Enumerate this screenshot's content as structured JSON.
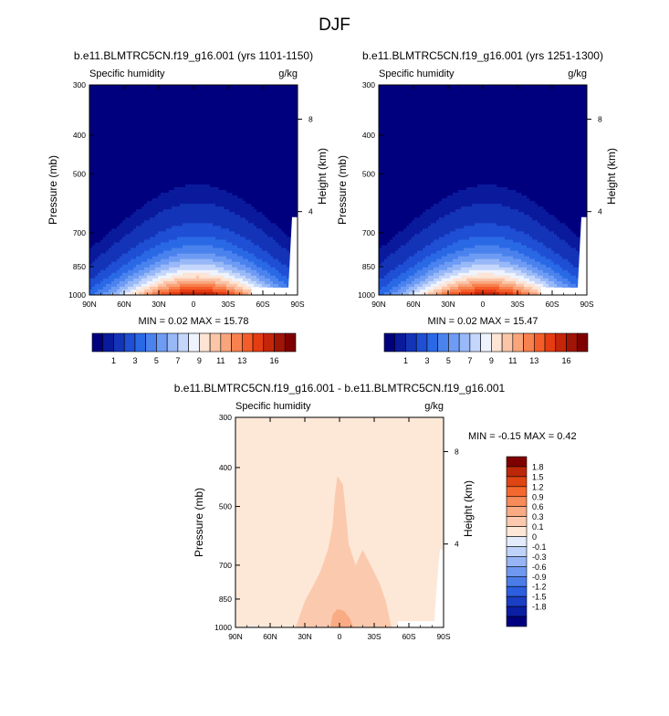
{
  "page": {
    "title": "DJF"
  },
  "palettes": {
    "absolute": [
      "#00007f",
      "#0a1a9c",
      "#1434b8",
      "#1e4fd4",
      "#2a69e6",
      "#4a82ee",
      "#6e9cf4",
      "#98b8f8",
      "#c4d6fb",
      "#eef3fd",
      "#fde4d4",
      "#fbc5a8",
      "#f9a57c",
      "#f7814f",
      "#f45d2a",
      "#e63c12",
      "#c5260a",
      "#a01505",
      "#7f0000"
    ],
    "difference": [
      "#00007f",
      "#0b1fa3",
      "#1a3ec4",
      "#2c5ee0",
      "#4a7de8",
      "#6f99f0",
      "#97b4f5",
      "#bfd2f9",
      "#e3ecfc",
      "#fde8d8",
      "#fbcaae",
      "#f9ab84",
      "#f78b59",
      "#f4682f",
      "#de4513",
      "#bd2709",
      "#7f0000"
    ]
  },
  "panels": [
    {
      "title": "b.e11.BLMTRC5CN.f19_g16.001 (yrs 1101-1150)",
      "left_label": "Specific humidity",
      "right_label": "g/kg",
      "y_label": "Pressure (mb)",
      "y2_label": "Height (km)",
      "x_ticks": [
        "90N",
        "60N",
        "30N",
        "0",
        "30S",
        "60S",
        "90S"
      ],
      "y_ticks": [
        "300",
        "400",
        "500",
        "700",
        "850",
        "1000"
      ],
      "h_ticks": [
        "8",
        "4"
      ],
      "stats": "MIN =   0.02   MAX =  15.78",
      "colorbar_labels": [
        "1",
        "3",
        "5",
        "7",
        "9",
        "11",
        "13",
        "16"
      ]
    },
    {
      "title": "b.e11.BLMTRC5CN.f19_g16.001 (yrs 1251-1300)",
      "left_label": "Specific humidity",
      "right_label": "g/kg",
      "y_label": "Pressure (mb)",
      "y2_label": "Height (km)",
      "x_ticks": [
        "90N",
        "60N",
        "30N",
        "0",
        "30S",
        "60S",
        "90S"
      ],
      "y_ticks": [
        "300",
        "400",
        "500",
        "700",
        "850",
        "1000"
      ],
      "h_ticks": [
        "8",
        "4"
      ],
      "stats": "MIN =   0.02   MAX =  15.47",
      "colorbar_labels": [
        "1",
        "3",
        "5",
        "7",
        "9",
        "11",
        "13",
        "16"
      ]
    },
    {
      "title": "b.e11.BLMTRC5CN.f19_g16.001 - b.e11.BLMTRC5CN.f19_g16.001",
      "left_label": "Specific humidity",
      "right_label": "g/kg",
      "y_label": "Pressure (mb)",
      "y2_label": "Height (km)",
      "x_ticks": [
        "90N",
        "60N",
        "30N",
        "0",
        "30S",
        "60S",
        "90S"
      ],
      "y_ticks": [
        "300",
        "400",
        "500",
        "700",
        "850",
        "1000"
      ],
      "h_ticks": [
        "8",
        "4"
      ],
      "stats": "MIN =  -0.15   MAX =   0.42",
      "colorbar_labels": [
        "1.8",
        "1.5",
        "1.2",
        "0.9",
        "0.6",
        "0.3",
        "0.1",
        "0",
        "-0.1",
        "-0.3",
        "-0.6",
        "-0.9",
        "-1.2",
        "-1.5",
        "-1.8"
      ]
    }
  ],
  "chart_data": [
    {
      "type": "heatmap",
      "title": "b.e11.BLMTRC5CN.f19_g16.001 (yrs 1101-1150)",
      "field": "Specific humidity",
      "units": "g/kg",
      "xlabel": "",
      "ylabel": "Pressure (mb)",
      "y2label": "Height (km)",
      "xlim": [
        90,
        -90
      ],
      "ylim": [
        1000,
        300
      ],
      "min": 0.02,
      "max": 15.78,
      "contour_levels": [
        0.5,
        1,
        2,
        3,
        4,
        5,
        6,
        7,
        8,
        9,
        10,
        11,
        12,
        13,
        14,
        15,
        16
      ],
      "peak_latitude": -3,
      "peak_pressure": 1000
    },
    {
      "type": "heatmap",
      "title": "b.e11.BLMTRC5CN.f19_g16.001 (yrs 1251-1300)",
      "field": "Specific humidity",
      "units": "g/kg",
      "xlabel": "",
      "ylabel": "Pressure (mb)",
      "y2label": "Height (km)",
      "xlim": [
        90,
        -90
      ],
      "ylim": [
        1000,
        300
      ],
      "min": 0.02,
      "max": 15.47,
      "contour_levels": [
        0.5,
        1,
        2,
        3,
        4,
        5,
        6,
        7,
        8,
        9,
        10,
        11,
        12,
        13,
        14,
        15,
        16
      ],
      "peak_latitude": -3,
      "peak_pressure": 1000
    },
    {
      "type": "heatmap",
      "title": "b.e11.BLMTRC5CN.f19_g16.001 - b.e11.BLMTRC5CN.f19_g16.001",
      "field": "Specific humidity",
      "units": "g/kg",
      "xlabel": "",
      "ylabel": "Pressure (mb)",
      "y2label": "Height (km)",
      "xlim": [
        90,
        -90
      ],
      "ylim": [
        1000,
        300
      ],
      "min": -0.15,
      "max": 0.42,
      "contour_levels": [
        -1.8,
        -1.5,
        -1.2,
        -0.9,
        -0.6,
        -0.3,
        -0.1,
        0,
        0.1,
        0.3,
        0.6,
        0.9,
        1.2,
        1.5,
        1.8
      ]
    }
  ]
}
